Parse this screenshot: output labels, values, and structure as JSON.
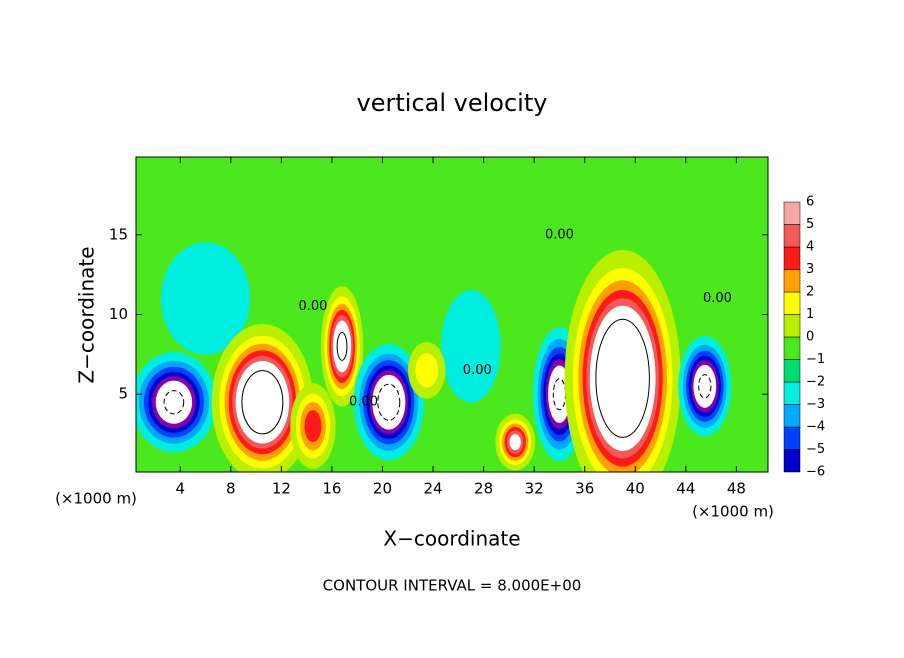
{
  "chart_data": {
    "type": "contour",
    "title": "vertical velocity",
    "x_label": "X−coordinate",
    "y_label": "Z−coordinate",
    "x_unit": "(×1000 m)",
    "x_unit_right": "(×1000 m)",
    "note": "CONTOUR INTERVAL = 8.000E+00",
    "xlim": [
      0.5,
      50.5
    ],
    "ylim": [
      0.125,
      19.875
    ],
    "xticks": [
      4,
      8,
      12,
      16,
      20,
      24,
      28,
      32,
      36,
      40,
      44,
      48
    ],
    "yticks": [
      5,
      10,
      15
    ],
    "contour_interval": 8,
    "colorbar": {
      "levels": [
        {
          "value": -6,
          "label": "−6"
        },
        {
          "value": -5,
          "label": "−5"
        },
        {
          "value": -4,
          "label": "−4"
        },
        {
          "value": -3,
          "label": "−3"
        },
        {
          "value": -2,
          "label": "−2"
        },
        {
          "value": -1,
          "label": "−1"
        },
        0,
        1,
        2,
        3,
        4,
        5,
        6
      ],
      "colors": [
        "#8a00b0",
        "#0000c8",
        "#0040ff",
        "#00a8ff",
        "#00eee0",
        "#00dd70",
        "#4ce81e",
        "#b8f000",
        "#ffff00",
        "#ffa000",
        "#ff1a1a",
        "#f25a5a",
        "#f7a6a6"
      ],
      "over_color": "#ffffff"
    },
    "features": [
      {
        "x": 3.5,
        "z": 4.5,
        "value": -9,
        "sx": 1.6,
        "sz": 1.5
      },
      {
        "x": 6,
        "z": 11,
        "value": -2,
        "sx": 3,
        "sz": 3
      },
      {
        "x": 27,
        "z": 8,
        "value": -2,
        "sx": 2,
        "sz": 3
      },
      {
        "x": 10.5,
        "z": 4.5,
        "value": 12,
        "sx": 1.8,
        "sz": 2.2
      },
      {
        "x": 14.5,
        "z": 3,
        "value": 5,
        "sx": 1,
        "sz": 1.5
      },
      {
        "x": 16.8,
        "z": 8,
        "value": 9,
        "sx": 0.8,
        "sz": 1.8
      },
      {
        "x": 20.5,
        "z": 4.5,
        "value": -10,
        "sx": 1.3,
        "sz": 1.7
      },
      {
        "x": 23.5,
        "z": 6.5,
        "value": 3,
        "sx": 1,
        "sz": 1.2
      },
      {
        "x": 30.5,
        "z": 2,
        "value": 7,
        "sx": 0.8,
        "sz": 0.9
      },
      {
        "x": 34,
        "z": 5,
        "value": -9,
        "sx": 1,
        "sz": 2
      },
      {
        "x": 39,
        "z": 6,
        "value": 14,
        "sx": 2,
        "sz": 3.5
      },
      {
        "x": 45.5,
        "z": 5.5,
        "value": -9,
        "sx": 1,
        "sz": 1.5
      }
    ],
    "contour_labels": [
      {
        "text": "0.00",
        "x": 14.5,
        "z": 10.5
      },
      {
        "text": "0.00",
        "x": 18.5,
        "z": 4.5
      },
      {
        "text": "0.00",
        "x": 27.5,
        "z": 6.5
      },
      {
        "text": "0.00",
        "x": 34,
        "z": 15
      },
      {
        "text": "0.00",
        "x": 46.5,
        "z": 11
      }
    ]
  }
}
